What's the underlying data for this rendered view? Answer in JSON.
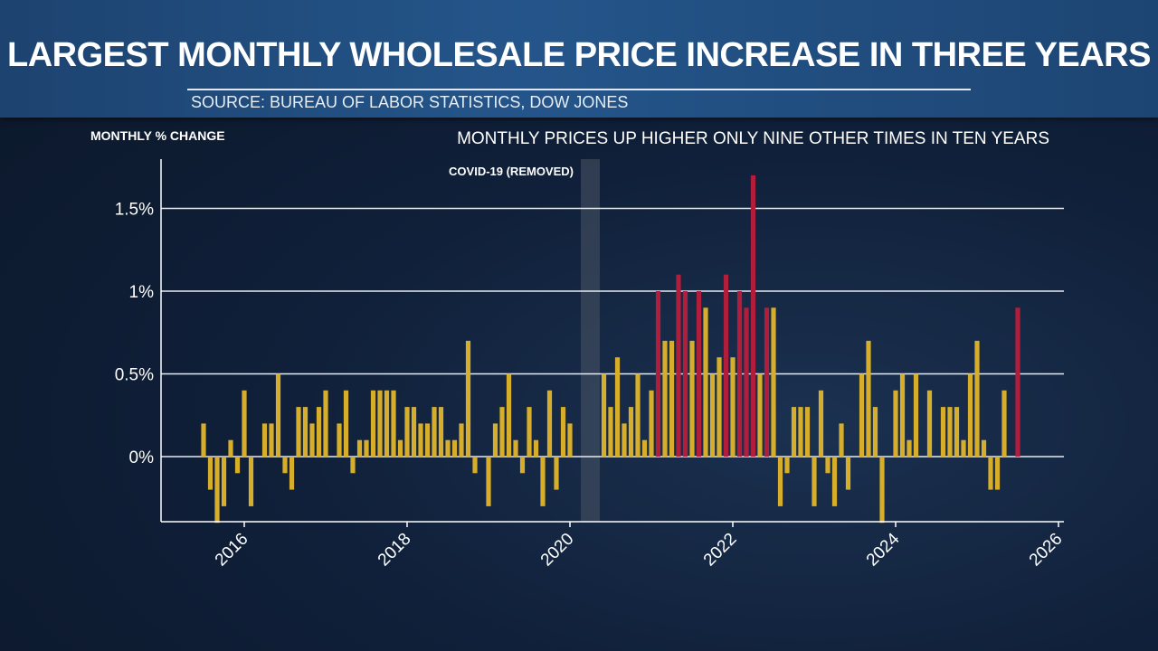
{
  "header": {
    "title": "LARGEST MONTHLY WHOLESALE PRICE INCREASE IN THREE YEARS",
    "source": "SOURCE: BUREAU OF LABOR STATISTICS, DOW JONES"
  },
  "colors": {
    "normal_bar": "#d6ae2c",
    "highlight_bar": "#b01e3c",
    "covid_band": "#4a5566",
    "grid": "#e8ecf2"
  },
  "chart_data": {
    "type": "bar",
    "ylabel": "MONTHLY % CHANGE",
    "subtitle": "MONTHLY PRICES UP HIGHER ONLY NINE OTHER TIMES IN TEN YEARS",
    "annotation": "COVID-19 (REMOVED)",
    "covid_band": [
      "2020-03",
      "2020-05"
    ],
    "x_range": [
      "2015-01",
      "2026-01"
    ],
    "ylim": [
      -0.4,
      1.8
    ],
    "y_ticks": [
      {
        "value": 0,
        "label": "0%"
      },
      {
        "value": 0.5,
        "label": "0.5%"
      },
      {
        "value": 1,
        "label": "1%"
      },
      {
        "value": 1.5,
        "label": "1.5%"
      }
    ],
    "x_ticks": [
      "2016",
      "2018",
      "2020",
      "2022",
      "2024",
      "2026"
    ],
    "grid": true,
    "series": [
      {
        "values": [
          {
            "month": "2015-07",
            "value": 0.2
          },
          {
            "month": "2015-08",
            "value": -0.2
          },
          {
            "month": "2015-09",
            "value": -0.4
          },
          {
            "month": "2015-10",
            "value": -0.3
          },
          {
            "month": "2015-11",
            "value": 0.1
          },
          {
            "month": "2015-12",
            "value": -0.1
          },
          {
            "month": "2016-01",
            "value": 0.4
          },
          {
            "month": "2016-02",
            "value": -0.3
          },
          {
            "month": "2016-04",
            "value": 0.2
          },
          {
            "month": "2016-05",
            "value": 0.2
          },
          {
            "month": "2016-06",
            "value": 0.5
          },
          {
            "month": "2016-07",
            "value": -0.1
          },
          {
            "month": "2016-08",
            "value": -0.2
          },
          {
            "month": "2016-09",
            "value": 0.3
          },
          {
            "month": "2016-10",
            "value": 0.3
          },
          {
            "month": "2016-11",
            "value": 0.2
          },
          {
            "month": "2016-12",
            "value": 0.3
          },
          {
            "month": "2017-01",
            "value": 0.4
          },
          {
            "month": "2017-03",
            "value": 0.2
          },
          {
            "month": "2017-04",
            "value": 0.4
          },
          {
            "month": "2017-05",
            "value": -0.1
          },
          {
            "month": "2017-06",
            "value": 0.1
          },
          {
            "month": "2017-07",
            "value": 0.1
          },
          {
            "month": "2017-08",
            "value": 0.4
          },
          {
            "month": "2017-09",
            "value": 0.4
          },
          {
            "month": "2017-10",
            "value": 0.4
          },
          {
            "month": "2017-11",
            "value": 0.4
          },
          {
            "month": "2017-12",
            "value": 0.1
          },
          {
            "month": "2018-01",
            "value": 0.3
          },
          {
            "month": "2018-02",
            "value": 0.3
          },
          {
            "month": "2018-03",
            "value": 0.2
          },
          {
            "month": "2018-04",
            "value": 0.2
          },
          {
            "month": "2018-05",
            "value": 0.3
          },
          {
            "month": "2018-06",
            "value": 0.3
          },
          {
            "month": "2018-07",
            "value": 0.1
          },
          {
            "month": "2018-08",
            "value": 0.1
          },
          {
            "month": "2018-09",
            "value": 0.2
          },
          {
            "month": "2018-10",
            "value": 0.7
          },
          {
            "month": "2018-11",
            "value": -0.1
          },
          {
            "month": "2019-01",
            "value": -0.3
          },
          {
            "month": "2019-02",
            "value": 0.2
          },
          {
            "month": "2019-03",
            "value": 0.3
          },
          {
            "month": "2019-04",
            "value": 0.5
          },
          {
            "month": "2019-05",
            "value": 0.1
          },
          {
            "month": "2019-06",
            "value": -0.1
          },
          {
            "month": "2019-07",
            "value": 0.3
          },
          {
            "month": "2019-08",
            "value": 0.1
          },
          {
            "month": "2019-09",
            "value": -0.3
          },
          {
            "month": "2019-10",
            "value": 0.4
          },
          {
            "month": "2019-11",
            "value": -0.2
          },
          {
            "month": "2019-12",
            "value": 0.3
          },
          {
            "month": "2020-01",
            "value": 0.2
          },
          {
            "month": "2020-06",
            "value": 0.5
          },
          {
            "month": "2020-07",
            "value": 0.3
          },
          {
            "month": "2020-08",
            "value": 0.6
          },
          {
            "month": "2020-09",
            "value": 0.2
          },
          {
            "month": "2020-10",
            "value": 0.3
          },
          {
            "month": "2020-11",
            "value": 0.5
          },
          {
            "month": "2020-12",
            "value": 0.1
          },
          {
            "month": "2021-01",
            "value": 0.4
          },
          {
            "month": "2021-02",
            "value": 1.0,
            "highlight": true
          },
          {
            "month": "2021-03",
            "value": 0.7
          },
          {
            "month": "2021-04",
            "value": 0.7
          },
          {
            "month": "2021-05",
            "value": 1.1,
            "highlight": true
          },
          {
            "month": "2021-06",
            "value": 1.0,
            "highlight": true
          },
          {
            "month": "2021-07",
            "value": 0.7
          },
          {
            "month": "2021-08",
            "value": 1.0,
            "highlight": true
          },
          {
            "month": "2021-09",
            "value": 0.9
          },
          {
            "month": "2021-10",
            "value": 0.5
          },
          {
            "month": "2021-11",
            "value": 0.6
          },
          {
            "month": "2021-12",
            "value": 1.1,
            "highlight": true
          },
          {
            "month": "2022-01",
            "value": 0.6
          },
          {
            "month": "2022-02",
            "value": 1.0,
            "highlight": true
          },
          {
            "month": "2022-03",
            "value": 0.9,
            "highlight": true
          },
          {
            "month": "2022-04",
            "value": 1.7,
            "highlight": true
          },
          {
            "month": "2022-05",
            "value": 0.5
          },
          {
            "month": "2022-06",
            "value": 0.9,
            "highlight": true
          },
          {
            "month": "2022-07",
            "value": 0.9
          },
          {
            "month": "2022-08",
            "value": -0.3
          },
          {
            "month": "2022-09",
            "value": -0.1
          },
          {
            "month": "2022-10",
            "value": 0.3
          },
          {
            "month": "2022-11",
            "value": 0.3
          },
          {
            "month": "2022-12",
            "value": 0.3
          },
          {
            "month": "2023-01",
            "value": -0.3
          },
          {
            "month": "2023-02",
            "value": 0.4
          },
          {
            "month": "2023-03",
            "value": -0.1
          },
          {
            "month": "2023-04",
            "value": -0.3
          },
          {
            "month": "2023-05",
            "value": 0.2
          },
          {
            "month": "2023-06",
            "value": -0.2
          },
          {
            "month": "2023-08",
            "value": 0.5
          },
          {
            "month": "2023-09",
            "value": 0.7
          },
          {
            "month": "2023-10",
            "value": 0.3
          },
          {
            "month": "2023-11",
            "value": -0.4
          },
          {
            "month": "2024-01",
            "value": 0.4
          },
          {
            "month": "2024-02",
            "value": 0.5
          },
          {
            "month": "2024-03",
            "value": 0.1
          },
          {
            "month": "2024-04",
            "value": 0.5
          },
          {
            "month": "2024-06",
            "value": 0.4
          },
          {
            "month": "2024-08",
            "value": 0.3
          },
          {
            "month": "2024-09",
            "value": 0.3
          },
          {
            "month": "2024-10",
            "value": 0.3
          },
          {
            "month": "2024-11",
            "value": 0.1
          },
          {
            "month": "2024-12",
            "value": 0.5
          },
          {
            "month": "2025-01",
            "value": 0.7
          },
          {
            "month": "2025-02",
            "value": 0.1
          },
          {
            "month": "2025-03",
            "value": -0.2
          },
          {
            "month": "2025-04",
            "value": -0.2
          },
          {
            "month": "2025-05",
            "value": 0.4
          },
          {
            "month": "2025-07",
            "value": 0.9,
            "highlight": true
          }
        ]
      }
    ]
  }
}
